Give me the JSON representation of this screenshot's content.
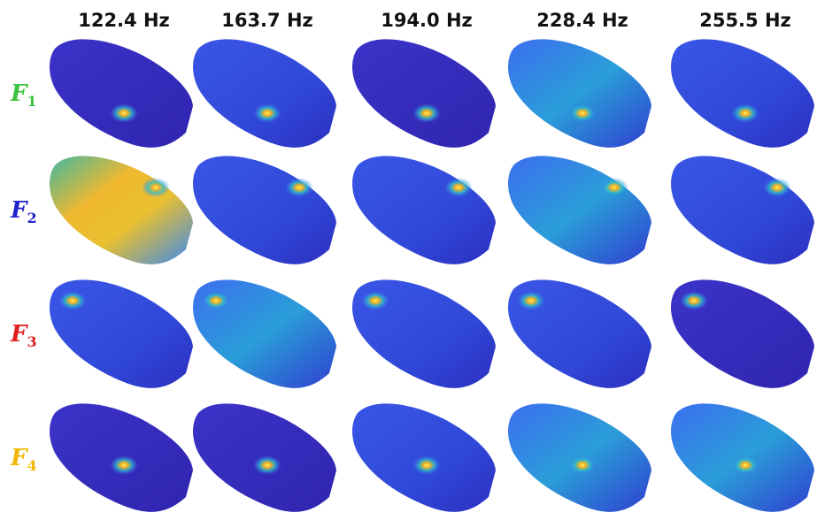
{
  "column_headers": [
    "122.4 Hz",
    "163.7 Hz",
    "194.0 Hz",
    "228.4 Hz",
    "255.5 Hz"
  ],
  "row_labels": [
    {
      "letter": "F",
      "index": "1",
      "color": "#3cc23c"
    },
    {
      "letter": "F",
      "index": "2",
      "color": "#2222cc"
    },
    {
      "letter": "F",
      "index": "3",
      "color": "#e02020"
    },
    {
      "letter": "F",
      "index": "4",
      "color": "#f0b800"
    }
  ]
}
